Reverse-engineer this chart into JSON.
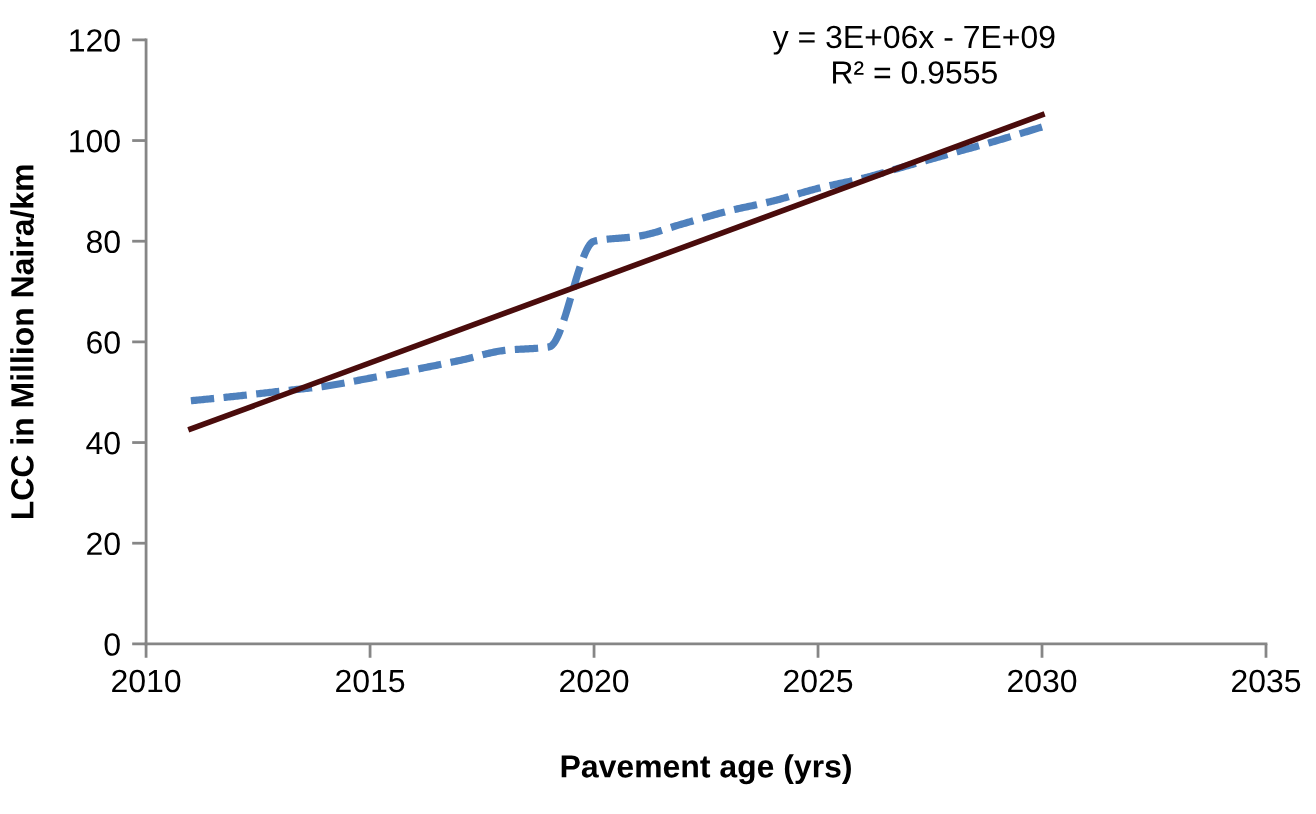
{
  "chart_data": {
    "type": "line",
    "xlabel": "Pavement age (yrs)",
    "ylabel": "LCC in Million Naira/km",
    "annotations": [
      "y = 3E+06x - 7E+09\nR² = 0.9555"
    ],
    "series": [
      {
        "color": "#4f81bd",
        "line_style": "dashed",
        "x": [
          2011,
          2012,
          2013,
          2014,
          2015,
          2016,
          2017,
          2018,
          2019,
          2020,
          2021,
          2022,
          2023,
          2024,
          2025,
          2026,
          2027,
          2028,
          2029,
          2030
        ],
        "values": [
          48.3,
          49.2,
          50.2,
          51.2,
          52.8,
          54.5,
          56.3,
          58.3,
          59.0,
          80.0,
          81.0,
          83.5,
          86.0,
          88.0,
          90.5,
          92.5,
          95.0,
          97.5,
          100.0,
          102.7
        ]
      },
      {
        "color": "#4a0c0c",
        "line_style": "solid",
        "x": [
          2011,
          2030
        ],
        "values": [
          42.7,
          105.1
        ]
      }
    ],
    "xlim": [
      2010,
      2035
    ],
    "xticks": [
      2010,
      2015,
      2020,
      2025,
      2030,
      2035
    ],
    "ylim": [
      0,
      120
    ],
    "yticks": [
      0,
      20,
      40,
      60,
      80,
      100,
      120
    ],
    "grid": false
  }
}
